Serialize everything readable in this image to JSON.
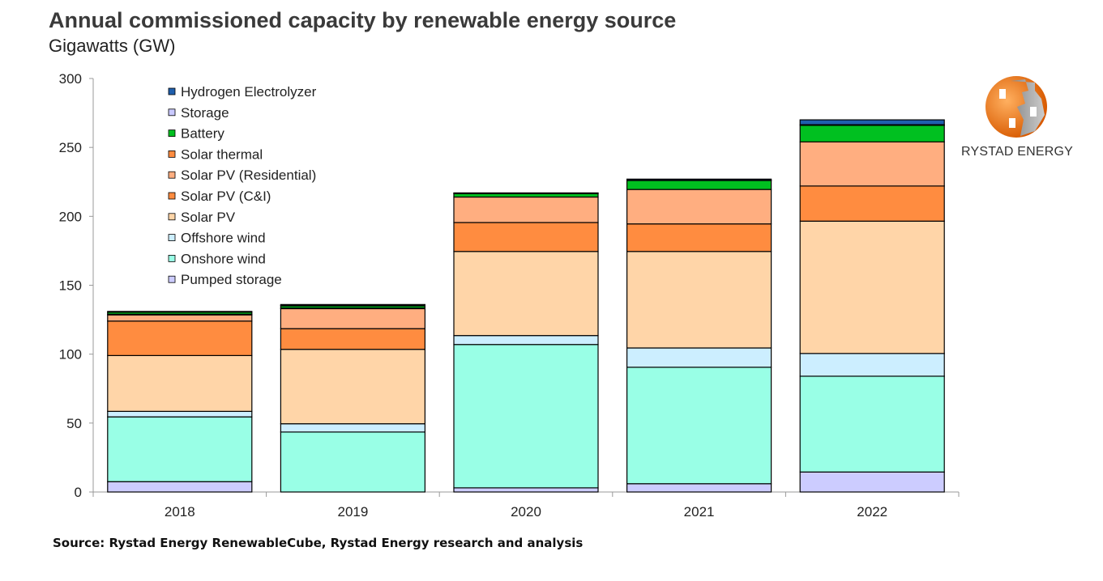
{
  "header": {
    "title": "Annual commissioned capacity by renewable energy source",
    "subtitle": "Gigawatts (GW)"
  },
  "footer": {
    "source": "Source: Rystad Energy RenewableCube, Rystad Energy research and analysis"
  },
  "logo": {
    "text": "RYSTAD ENERGY"
  },
  "chart_data": {
    "type": "bar",
    "stacked": true,
    "title": "Annual commissioned capacity by renewable energy source",
    "ylabel": "Gigawatts (GW)",
    "xlabel": "",
    "ylim": [
      0,
      300
    ],
    "yticks": [
      0,
      50,
      100,
      150,
      200,
      250,
      300
    ],
    "grid": false,
    "legend_position": "top-left",
    "categories": [
      "2018",
      "2019",
      "2020",
      "2021",
      "2022"
    ],
    "series": [
      {
        "name": "Pumped storage",
        "color": "#CCCCFF",
        "values": [
          7.5,
          0,
          3,
          6,
          14.5
        ]
      },
      {
        "name": "Onshore wind",
        "color": "#99FFE6",
        "values": [
          47,
          43.5,
          104,
          84.5,
          69.5
        ]
      },
      {
        "name": "Offshore wind",
        "color": "#CCEEFF",
        "values": [
          4,
          6,
          6.5,
          14,
          16.5
        ]
      },
      {
        "name": "Solar PV",
        "color": "#FFD5A8",
        "values": [
          40.5,
          54,
          61,
          70,
          96
        ]
      },
      {
        "name": "Solar PV (C&I)",
        "color": "#FF8C40",
        "values": [
          25,
          15,
          21,
          20,
          25.5
        ]
      },
      {
        "name": "Solar PV (Residential)",
        "color": "#FFAE80",
        "values": [
          4.5,
          14.5,
          18.5,
          25,
          32
        ]
      },
      {
        "name": "Solar thermal",
        "color": "#FF8C40",
        "values": [
          0.5,
          0.5,
          0,
          0,
          0
        ]
      },
      {
        "name": "Battery",
        "color": "#00C020",
        "values": [
          1.5,
          1.5,
          2.5,
          6.5,
          12
        ]
      },
      {
        "name": "Storage",
        "color": "#C9C9FF",
        "values": [
          0.5,
          0.5,
          0.2,
          0.2,
          0.5
        ]
      },
      {
        "name": "Hydrogen Electrolyzer",
        "color": "#1F5FAD",
        "values": [
          0,
          0.5,
          0.3,
          0.8,
          3.5
        ]
      }
    ]
  }
}
